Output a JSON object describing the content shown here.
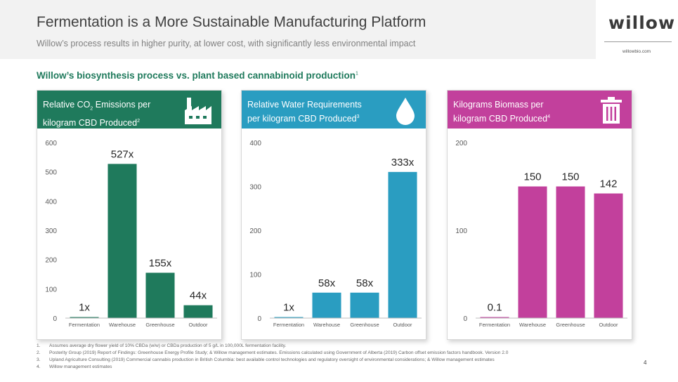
{
  "header": {
    "title": "Fermentation is a More Sustainable Manufacturing Platform",
    "subtitle": "Willow’s process results in higher purity, at lower cost, with significantly less environmental impact"
  },
  "logo": {
    "text": "willow",
    "url": "willowbio.com"
  },
  "section": {
    "heading": "Willow’s biosynthesis process vs. plant based cannabinoid production",
    "footnote_ref": "1"
  },
  "panels": [
    {
      "title_pre": "Relative CO",
      "title_sub": "2",
      "title_post": " Emissions per",
      "title_line2": "kilogram CBD Produced",
      "title_ref": "2",
      "color": "#1f7a5c",
      "icon": "factory-icon"
    },
    {
      "title_pre": "Relative Water Requirements",
      "title_sub": "",
      "title_post": "",
      "title_line2": "per kilogram CBD Produced",
      "title_ref": "3",
      "color": "#2a9dc1",
      "icon": "water-drop-icon"
    },
    {
      "title_pre": "Kilograms Biomass per",
      "title_sub": "",
      "title_post": "",
      "title_line2": "kilogram CBD Produced",
      "title_ref": "4",
      "color": "#c2409c",
      "icon": "trash-bin-icon"
    }
  ],
  "chart_data": [
    {
      "type": "bar",
      "categories": [
        "Fermentation",
        "Warehouse",
        "Greenhouse",
        "Outdoor"
      ],
      "values": [
        1,
        527,
        155,
        44
      ],
      "data_labels": [
        "1x",
        "527x",
        "155x",
        "44x"
      ],
      "ylim": [
        0,
        600
      ],
      "yticks": [
        0,
        100,
        200,
        300,
        400,
        500,
        600
      ],
      "color": "#1f7a5c",
      "grid": false
    },
    {
      "type": "bar",
      "categories": [
        "Fermentation",
        "Warehouse",
        "Greenhouse",
        "Outdoor"
      ],
      "values": [
        1,
        58,
        58,
        333
      ],
      "data_labels": [
        "1x",
        "58x",
        "58x",
        "333x"
      ],
      "ylim": [
        0,
        400
      ],
      "yticks": [
        0,
        100,
        200,
        300,
        400
      ],
      "color": "#2a9dc1",
      "grid": false
    },
    {
      "type": "bar",
      "categories": [
        "Fermentation",
        "Warehouse",
        "Greenhouse",
        "Outdoor"
      ],
      "values": [
        0.1,
        150,
        150,
        142
      ],
      "data_labels": [
        "0.1",
        "150",
        "150",
        "142"
      ],
      "ylim": [
        0,
        200
      ],
      "yticks": [
        0,
        100,
        200
      ],
      "color": "#c2409c",
      "grid": false
    }
  ],
  "footnotes": [
    {
      "num": "1.",
      "text": "Assumes average dry flower yield of 10% CBDa (w/w) or CBDa production of 5 g/L in 100,000L fermentation facility."
    },
    {
      "num": "2.",
      "text": "Posterity Group (2019) Report of Findings: Greenhouse Energy Profile Study; & Willow management estimates.  Emissions calculated using Government of Alberta (2019) Carbon offset emission factors handbook. Version 2.0"
    },
    {
      "num": "3.",
      "text": "Upland Agriculture Consulting (2019) Commercial cannabis production in British Columbia: best available control technologies and regulatory oversight of environmental considerations; & Willow management estimates"
    },
    {
      "num": "4.",
      "text": "Willow management estimates"
    }
  ],
  "page_number": "4"
}
